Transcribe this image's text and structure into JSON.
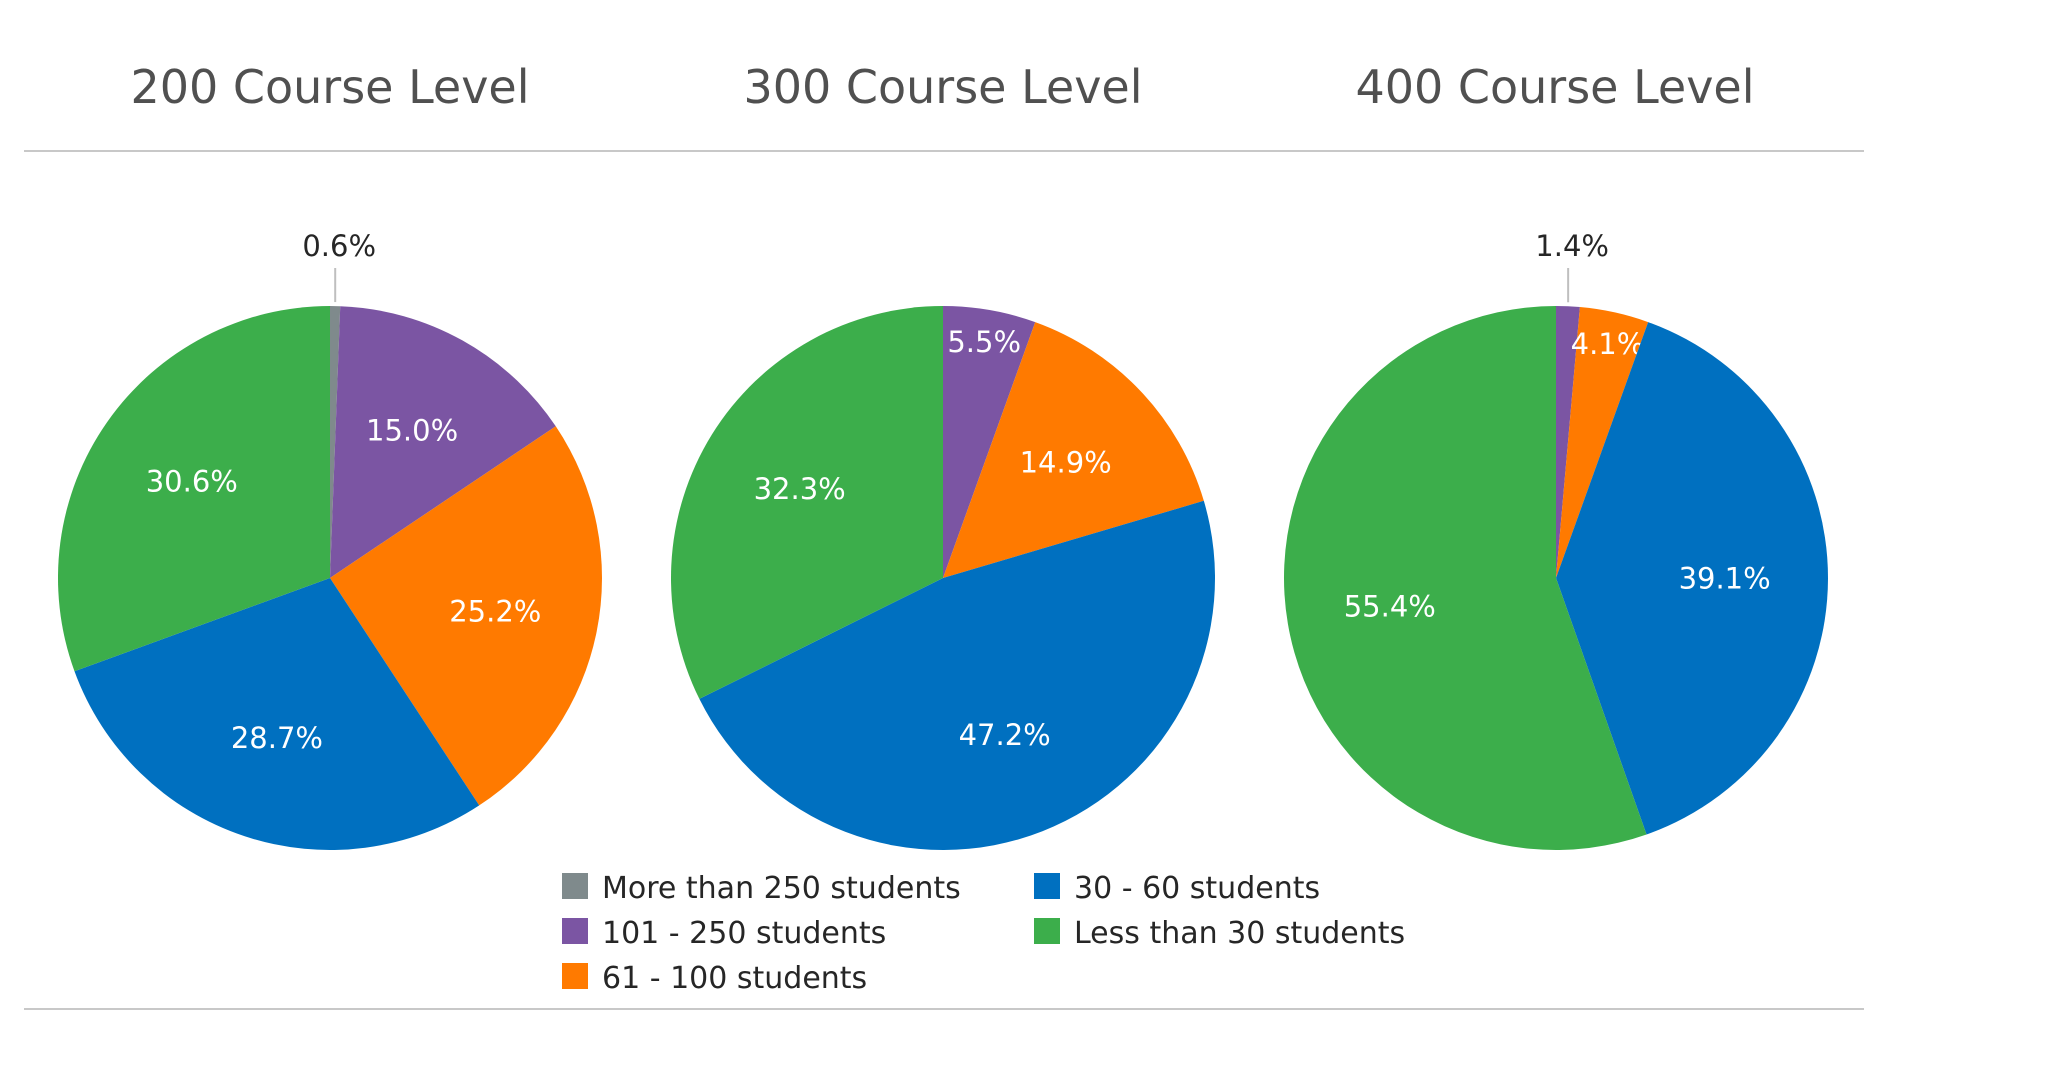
{
  "chart_data": {
    "type": "pie",
    "categories": [
      "More than 250 students",
      "101 - 250 students",
      "61 - 100 students",
      "30 - 60 students",
      "Less than 30 students"
    ],
    "colors": [
      "#7F8A8C",
      "#7B55A3",
      "#FF7A00",
      "#0070C0",
      "#3CAE4B"
    ],
    "charts": [
      {
        "title": "200 Course Level",
        "values": [
          0.6,
          15.0,
          25.2,
          28.7,
          30.6
        ],
        "labels": [
          "0.6%",
          "15.0%",
          "25.2%",
          "28.7%",
          "30.6%"
        ]
      },
      {
        "title": "300 Course Level",
        "values": [
          0.0,
          5.5,
          14.9,
          47.2,
          32.3
        ],
        "labels": [
          "",
          "5.5%",
          "14.9%",
          "47.2%",
          "32.3%"
        ]
      },
      {
        "title": "400 Course Level",
        "values": [
          0.0,
          1.4,
          4.1,
          39.1,
          55.4
        ],
        "labels": [
          "",
          "1.4%",
          "4.1%",
          "39.1%",
          "55.4%"
        ]
      }
    ],
    "legend": [
      "More than 250 students",
      "101 - 250 students",
      "61 - 100 students",
      "30 - 60 students",
      "Less than 30 students"
    ],
    "legend_position": "bottom-center"
  }
}
